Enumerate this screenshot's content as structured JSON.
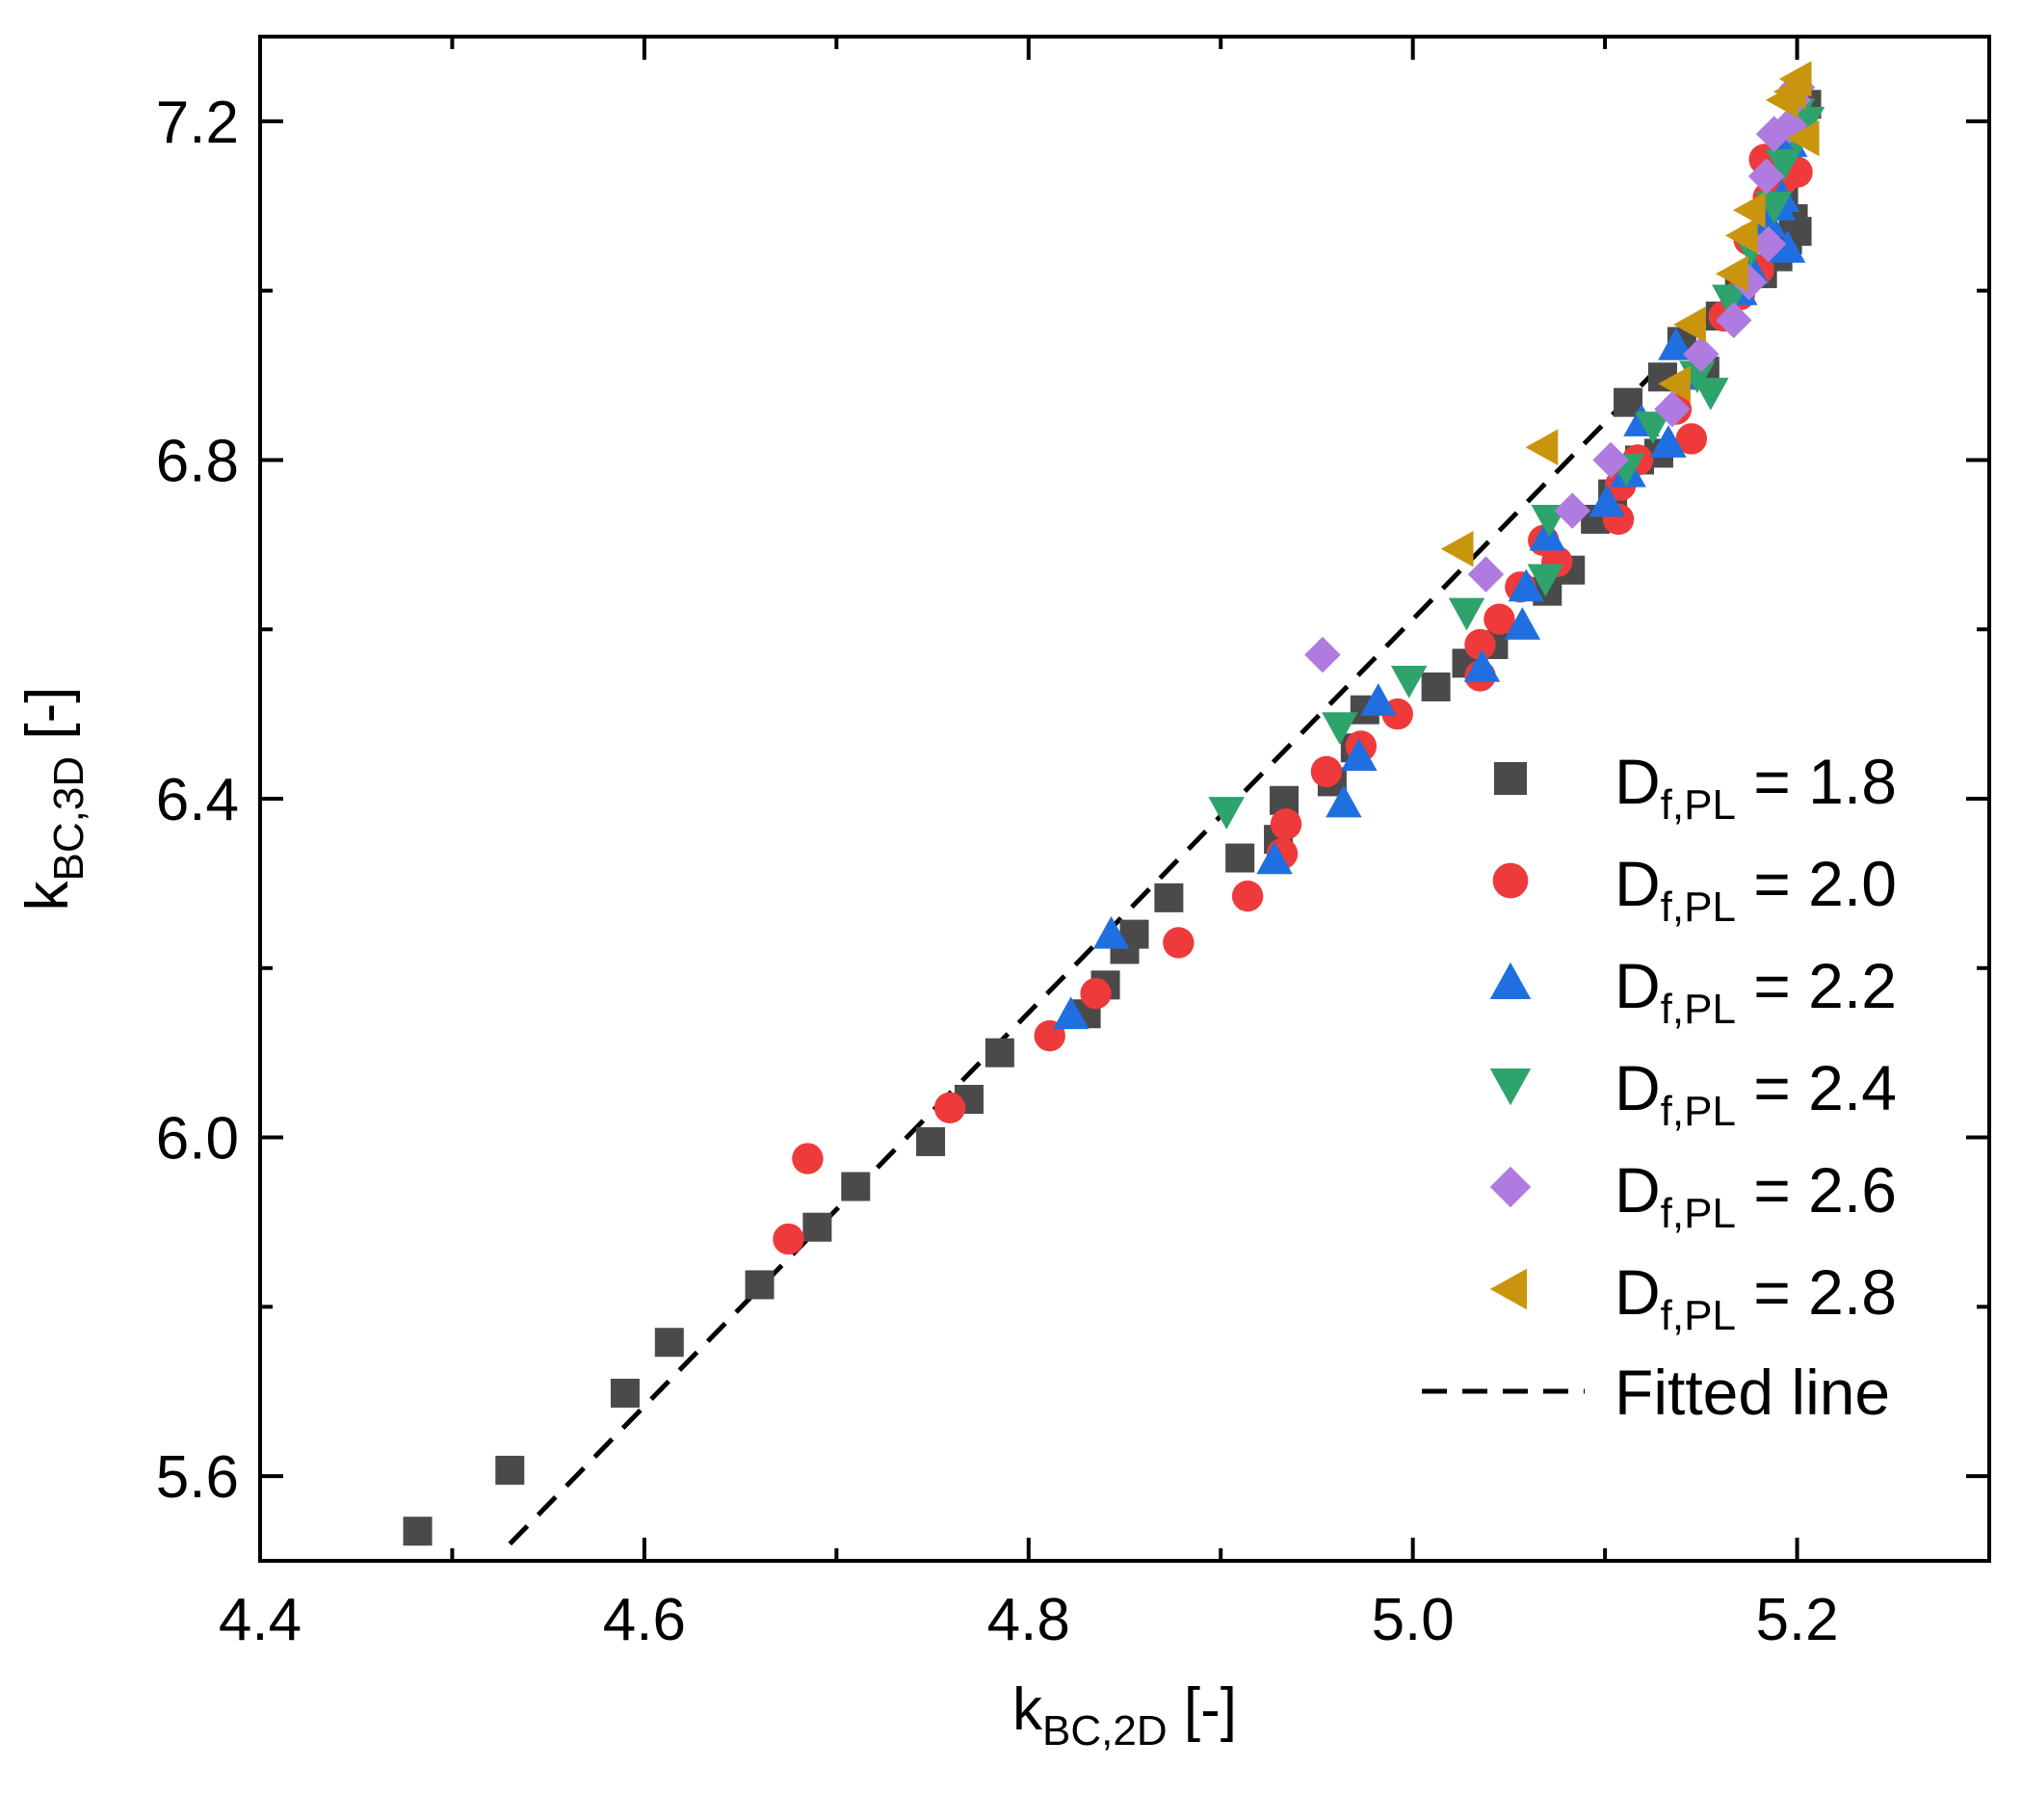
{
  "chart_data": {
    "type": "scatter",
    "title": "",
    "xlabel": {
      "base": "k",
      "sub": "BC,2D",
      "suffix": " [-]"
    },
    "ylabel": {
      "base": "k",
      "sub": "BC,3D",
      "suffix": " [-]"
    },
    "xlim": [
      4.4,
      5.3
    ],
    "ylim": [
      5.5,
      7.3
    ],
    "xticks": [
      4.4,
      4.6,
      4.8,
      5.0,
      5.2
    ],
    "xtick_labels": [
      "4.4",
      "4.6",
      "4.8",
      "5.0",
      "5.2"
    ],
    "yticks": [
      5.6,
      6.0,
      6.4,
      6.8,
      7.2
    ],
    "ytick_labels": [
      "5.6",
      "6.0",
      "6.4",
      "6.8",
      "7.2"
    ],
    "grid": false,
    "legend_position": "bottom-right",
    "series": [
      {
        "name": {
          "base": "D",
          "sub": "f,PL",
          "suffix": " = 1.8"
        },
        "marker": "square",
        "color": "#4a4a4a",
        "points": [
          [
            4.482,
            5.535
          ],
          [
            4.53,
            5.607
          ],
          [
            4.59,
            5.698
          ],
          [
            4.613,
            5.758
          ],
          [
            4.66,
            5.826
          ],
          [
            4.69,
            5.894
          ],
          [
            4.71,
            5.942
          ],
          [
            4.749,
            5.995
          ],
          [
            4.769,
            6.045
          ],
          [
            4.785,
            6.1
          ],
          [
            4.83,
            6.146
          ],
          [
            4.84,
            6.18
          ],
          [
            4.85,
            6.222
          ],
          [
            4.855,
            6.24
          ],
          [
            4.873,
            6.283
          ],
          [
            4.91,
            6.33
          ],
          [
            4.93,
            6.352
          ],
          [
            4.933,
            6.398
          ],
          [
            4.958,
            6.42
          ],
          [
            4.97,
            6.46
          ],
          [
            4.975,
            6.505
          ],
          [
            5.012,
            6.532
          ],
          [
            5.028,
            6.56
          ],
          [
            5.042,
            6.582
          ],
          [
            5.07,
            6.645
          ],
          [
            5.082,
            6.67
          ],
          [
            5.095,
            6.73
          ],
          [
            5.104,
            6.76
          ],
          [
            5.118,
            6.8
          ],
          [
            5.128,
            6.808
          ],
          [
            5.112,
            6.868
          ],
          [
            5.13,
            6.898
          ],
          [
            5.14,
            6.94
          ],
          [
            5.152,
            6.905
          ],
          [
            5.16,
            6.97
          ],
          [
            5.17,
            7.0
          ],
          [
            5.182,
            7.02
          ],
          [
            5.19,
            7.04
          ],
          [
            5.195,
            7.06
          ],
          [
            5.198,
            7.085
          ],
          [
            5.193,
            7.11
          ],
          [
            5.2,
            7.07
          ],
          [
            5.205,
            7.22
          ]
        ]
      },
      {
        "name": {
          "base": "D",
          "sub": "f,PL",
          "suffix": " = 2.0"
        },
        "marker": "circle",
        "color": "#ee3a3a",
        "points": [
          [
            4.685,
            5.975
          ],
          [
            4.675,
            5.88
          ],
          [
            4.759,
            6.035
          ],
          [
            4.811,
            6.12
          ],
          [
            4.835,
            6.17
          ],
          [
            4.878,
            6.23
          ],
          [
            4.914,
            6.285
          ],
          [
            4.932,
            6.335
          ],
          [
            4.934,
            6.37
          ],
          [
            4.955,
            6.432
          ],
          [
            4.973,
            6.462
          ],
          [
            4.992,
            6.5
          ],
          [
            5.035,
            6.545
          ],
          [
            5.035,
            6.582
          ],
          [
            5.045,
            6.612
          ],
          [
            5.056,
            6.65
          ],
          [
            5.068,
            6.705
          ],
          [
            5.075,
            6.68
          ],
          [
            5.107,
            6.73
          ],
          [
            5.108,
            6.77
          ],
          [
            5.117,
            6.8
          ],
          [
            5.137,
            6.86
          ],
          [
            5.145,
            6.825
          ],
          [
            5.162,
            6.97
          ],
          [
            5.17,
            6.995
          ],
          [
            5.175,
            7.06
          ],
          [
            5.18,
            7.025
          ],
          [
            5.183,
            7.155
          ],
          [
            5.192,
            7.13
          ],
          [
            5.2,
            7.14
          ],
          [
            5.185,
            7.11
          ],
          [
            5.198,
            7.23
          ]
        ]
      },
      {
        "name": {
          "base": "D",
          "sub": "f,PL",
          "suffix": " = 2.2"
        },
        "marker": "triangle-up",
        "color": "#1f6fe0",
        "points": [
          [
            4.822,
            6.145
          ],
          [
            4.843,
            6.24
          ],
          [
            4.928,
            6.328
          ],
          [
            4.964,
            6.395
          ],
          [
            4.972,
            6.45
          ],
          [
            4.982,
            6.515
          ],
          [
            5.036,
            6.555
          ],
          [
            5.057,
            6.605
          ],
          [
            5.059,
            6.65
          ],
          [
            5.07,
            6.71
          ],
          [
            5.101,
            6.75
          ],
          [
            5.112,
            6.785
          ],
          [
            5.119,
            6.845
          ],
          [
            5.133,
            6.82
          ],
          [
            5.137,
            6.935
          ],
          [
            5.145,
            6.9
          ],
          [
            5.17,
            7.0
          ],
          [
            5.176,
            7.025
          ],
          [
            5.185,
            7.08
          ],
          [
            5.195,
            7.05
          ],
          [
            5.192,
            7.11
          ],
          [
            5.196,
            7.175
          ],
          [
            5.19,
            7.1
          ]
        ]
      },
      {
        "name": {
          "base": "D",
          "sub": "f,PL",
          "suffix": " = 2.4"
        },
        "marker": "triangle-down",
        "color": "#2ea36b",
        "points": [
          [
            4.903,
            6.385
          ],
          [
            4.962,
            6.485
          ],
          [
            4.998,
            6.54
          ],
          [
            5.028,
            6.62
          ],
          [
            5.069,
            6.66
          ],
          [
            5.071,
            6.73
          ],
          [
            5.111,
            6.79
          ],
          [
            5.125,
            6.84
          ],
          [
            5.148,
            6.9
          ],
          [
            5.155,
            6.88
          ],
          [
            5.165,
            6.99
          ],
          [
            5.176,
            7.05
          ],
          [
            5.188,
            7.1
          ],
          [
            5.193,
            7.15
          ],
          [
            5.2,
            7.18
          ],
          [
            5.205,
            7.2
          ],
          [
            5.2,
            7.21
          ]
        ]
      },
      {
        "name": {
          "base": "D",
          "sub": "f,PL",
          "suffix": " = 2.6"
        },
        "marker": "diamond",
        "color": "#b07be0",
        "points": [
          [
            4.953,
            6.57
          ],
          [
            5.038,
            6.665
          ],
          [
            5.083,
            6.74
          ],
          [
            5.103,
            6.8
          ],
          [
            5.135,
            6.86
          ],
          [
            5.15,
            6.925
          ],
          [
            5.167,
            6.965
          ],
          [
            5.175,
            7.01
          ],
          [
            5.185,
            7.055
          ],
          [
            5.184,
            7.135
          ],
          [
            5.188,
            7.185
          ],
          [
            5.196,
            7.195
          ],
          [
            5.2,
            7.24
          ],
          [
            5.198,
            7.225
          ]
        ]
      },
      {
        "name": {
          "base": "D",
          "sub": "f,PL",
          "suffix": " = 2.8"
        },
        "marker": "triangle-left",
        "color": "#c9950e",
        "points": [
          [
            5.024,
            6.695
          ],
          [
            5.068,
            6.815
          ],
          [
            5.137,
            6.89
          ],
          [
            5.145,
            6.96
          ],
          [
            5.167,
            7.02
          ],
          [
            5.172,
            7.065
          ],
          [
            5.176,
            7.095
          ],
          [
            5.193,
            7.225
          ],
          [
            5.197,
            7.235
          ],
          [
            5.2,
            7.25
          ],
          [
            5.204,
            7.18
          ]
        ]
      }
    ],
    "fitted_line": {
      "name": "Fitted line",
      "points": [
        [
          4.53,
          5.52
        ],
        [
          5.198,
          7.072
        ]
      ]
    }
  }
}
